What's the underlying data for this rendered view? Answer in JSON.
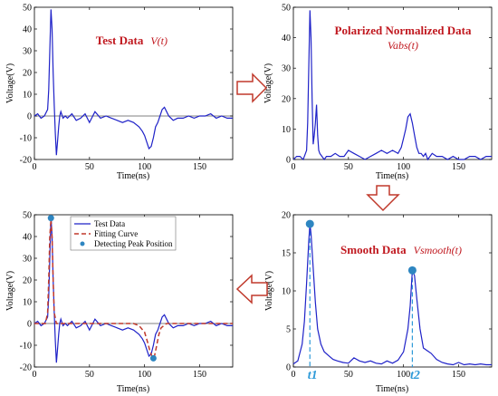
{
  "colors": {
    "signal": "#1f22c8",
    "fit": "#c0392b",
    "peak_marker": "#2e86c1",
    "title": "#c0181f",
    "peak_label": "#2e9ad8",
    "arrow_fill": "#ffffff",
    "arrow_stroke": "#c0392b"
  },
  "chart_data": [
    {
      "type": "line",
      "panel": "top-left",
      "title": "Test Data",
      "title_func": "V(t)",
      "xlabel": "Time(ns)",
      "ylabel": "Voltage(V)",
      "xlim": [
        0,
        180
      ],
      "ylim": [
        -20,
        50
      ],
      "xticks": [
        0,
        50,
        100,
        150
      ],
      "yticks": [
        -20,
        -10,
        0,
        10,
        20,
        30,
        40,
        50
      ],
      "grid": false,
      "series": [
        {
          "x": [
            0,
            3,
            6,
            9,
            12,
            13,
            14,
            15,
            16,
            17,
            18,
            19,
            20,
            21,
            22,
            23,
            24,
            26,
            28,
            30,
            34,
            38,
            42,
            46,
            50,
            55,
            60,
            65,
            70,
            75,
            80,
            85,
            90,
            95,
            98,
            100,
            102,
            104,
            106,
            108,
            110,
            112,
            114,
            116,
            118,
            120,
            122,
            124,
            126,
            130,
            135,
            140,
            145,
            150,
            155,
            160,
            165,
            170,
            175,
            180
          ],
          "y": [
            0,
            1,
            -1,
            0,
            3,
            12,
            30,
            49,
            40,
            20,
            5,
            -8,
            -18,
            -12,
            -5,
            0,
            2,
            -1,
            0,
            -1,
            1,
            -2,
            -1,
            1,
            -3,
            2,
            -1,
            0,
            -1,
            -2,
            -3,
            -2,
            -3,
            -5,
            -7,
            -9,
            -12,
            -15,
            -14,
            -10,
            -5,
            -3,
            0,
            3,
            4,
            2,
            0,
            -1,
            -2,
            -1,
            -1,
            0,
            -1,
            0,
            0,
            1,
            -1,
            0,
            -1,
            -1
          ]
        }
      ]
    },
    {
      "type": "line",
      "panel": "top-right",
      "title": "Polarized Normalized Data",
      "title_func": "Vabs(t)",
      "xlabel": "Time(ns)",
      "ylabel": "Voltage(V)",
      "xlim": [
        0,
        180
      ],
      "ylim": [
        0,
        50
      ],
      "xticks": [
        0,
        50,
        100,
        150
      ],
      "yticks": [
        0,
        10,
        20,
        30,
        40,
        50
      ],
      "grid": false,
      "series": [
        {
          "x": [
            0,
            3,
            6,
            9,
            12,
            13,
            14,
            15,
            16,
            17,
            18,
            19,
            20,
            21,
            22,
            23,
            24,
            26,
            28,
            30,
            34,
            38,
            42,
            46,
            50,
            55,
            60,
            65,
            70,
            75,
            80,
            85,
            90,
            95,
            98,
            100,
            102,
            104,
            106,
            108,
            110,
            112,
            114,
            116,
            118,
            120,
            122,
            124,
            126,
            130,
            135,
            140,
            145,
            150,
            155,
            160,
            165,
            170,
            175,
            180
          ],
          "y": [
            0,
            1,
            1,
            0,
            3,
            12,
            30,
            49,
            40,
            20,
            5,
            8,
            12,
            18,
            8,
            3,
            2,
            1,
            0,
            1,
            1,
            2,
            1,
            1,
            3,
            2,
            1,
            0,
            1,
            2,
            3,
            2,
            3,
            2,
            4,
            7,
            10,
            14,
            15,
            12,
            8,
            4,
            2,
            2,
            1,
            2,
            0,
            1,
            2,
            1,
            1,
            0,
            1,
            0,
            0,
            1,
            1,
            0,
            1,
            1
          ]
        }
      ]
    },
    {
      "type": "line",
      "panel": "bottom-right",
      "title": "Smooth Data",
      "title_func": "Vsmooth(t)",
      "xlabel": "Time(ns)",
      "ylabel": "Voltage(V)",
      "xlim": [
        0,
        180
      ],
      "ylim": [
        0,
        20
      ],
      "xticks": [
        0,
        50,
        100,
        150
      ],
      "yticks": [
        0,
        5,
        10,
        15,
        20
      ],
      "grid": false,
      "peak_labels": [
        "t1",
        "t2"
      ],
      "peaks": [
        {
          "x": 15,
          "y": 18.8
        },
        {
          "x": 108,
          "y": 12.7
        }
      ],
      "series": [
        {
          "x": [
            0,
            4,
            8,
            10,
            12,
            14,
            15,
            16,
            18,
            20,
            22,
            25,
            28,
            32,
            36,
            40,
            45,
            50,
            55,
            60,
            65,
            70,
            75,
            80,
            85,
            90,
            95,
            100,
            104,
            106,
            108,
            110,
            112,
            115,
            118,
            122,
            125,
            130,
            135,
            140,
            145,
            150,
            155,
            160,
            165,
            170,
            175,
            180
          ],
          "y": [
            0.4,
            0.8,
            3,
            6,
            11,
            16.5,
            18.8,
            17.5,
            13,
            8.5,
            5,
            3,
            2,
            1.5,
            1,
            0.8,
            0.6,
            0.5,
            1.2,
            0.8,
            0.6,
            0.8,
            0.5,
            0.4,
            0.8,
            0.5,
            0.9,
            2,
            5,
            8,
            12.7,
            12,
            9,
            5,
            2.5,
            2.1,
            1.8,
            1,
            0.6,
            0.4,
            0.3,
            0.6,
            0.3,
            0.4,
            0.3,
            0.4,
            0.3,
            0.3
          ]
        }
      ]
    },
    {
      "type": "line",
      "panel": "bottom-left",
      "xlabel": "Time(ns)",
      "ylabel": "Voltage(V)",
      "xlim": [
        0,
        180
      ],
      "ylim": [
        -20,
        50
      ],
      "xticks": [
        0,
        50,
        100,
        150
      ],
      "yticks": [
        -20,
        -10,
        0,
        10,
        20,
        30,
        40,
        50
      ],
      "grid": false,
      "legend": "top-right",
      "series": [
        {
          "name": "Test Data",
          "x": [
            0,
            3,
            6,
            9,
            12,
            13,
            14,
            15,
            16,
            17,
            18,
            19,
            20,
            21,
            22,
            23,
            24,
            26,
            28,
            30,
            34,
            38,
            42,
            46,
            50,
            55,
            60,
            65,
            70,
            75,
            80,
            85,
            90,
            95,
            98,
            100,
            102,
            104,
            106,
            108,
            110,
            112,
            114,
            116,
            118,
            120,
            122,
            124,
            126,
            130,
            135,
            140,
            145,
            150,
            155,
            160,
            165,
            170,
            175,
            180
          ],
          "y": [
            0,
            1,
            -1,
            0,
            3,
            12,
            30,
            49,
            40,
            20,
            5,
            -8,
            -18,
            -12,
            -5,
            0,
            2,
            -1,
            0,
            -1,
            1,
            -2,
            -1,
            1,
            -3,
            2,
            -1,
            0,
            -1,
            -2,
            -3,
            -2,
            -3,
            -5,
            -7,
            -9,
            -12,
            -15,
            -14,
            -10,
            -5,
            -3,
            0,
            3,
            4,
            2,
            0,
            -1,
            -2,
            -1,
            -1,
            0,
            -1,
            0,
            0,
            1,
            -1,
            0,
            -1,
            -1
          ]
        },
        {
          "name": "Fitting Curve",
          "x": [
            0,
            5,
            10,
            12,
            13,
            14,
            15,
            16,
            17,
            18,
            20,
            25,
            30,
            40,
            50,
            60,
            70,
            80,
            90,
            95,
            100,
            103,
            105,
            107,
            108,
            109,
            111,
            113,
            115,
            120,
            130,
            140,
            150,
            160,
            170,
            180
          ],
          "y": [
            0,
            0,
            0,
            5,
            20,
            40,
            48,
            40,
            20,
            5,
            0,
            0,
            0,
            0,
            0,
            0,
            0,
            0,
            0,
            -1,
            -4,
            -9,
            -13,
            -15.5,
            -16,
            -15,
            -10,
            -5,
            -2,
            0,
            0,
            0,
            0,
            0,
            0,
            0
          ]
        },
        {
          "name": "Detecting Peak Position",
          "x": [
            15,
            108
          ],
          "y": [
            48.5,
            -16
          ]
        }
      ]
    }
  ]
}
